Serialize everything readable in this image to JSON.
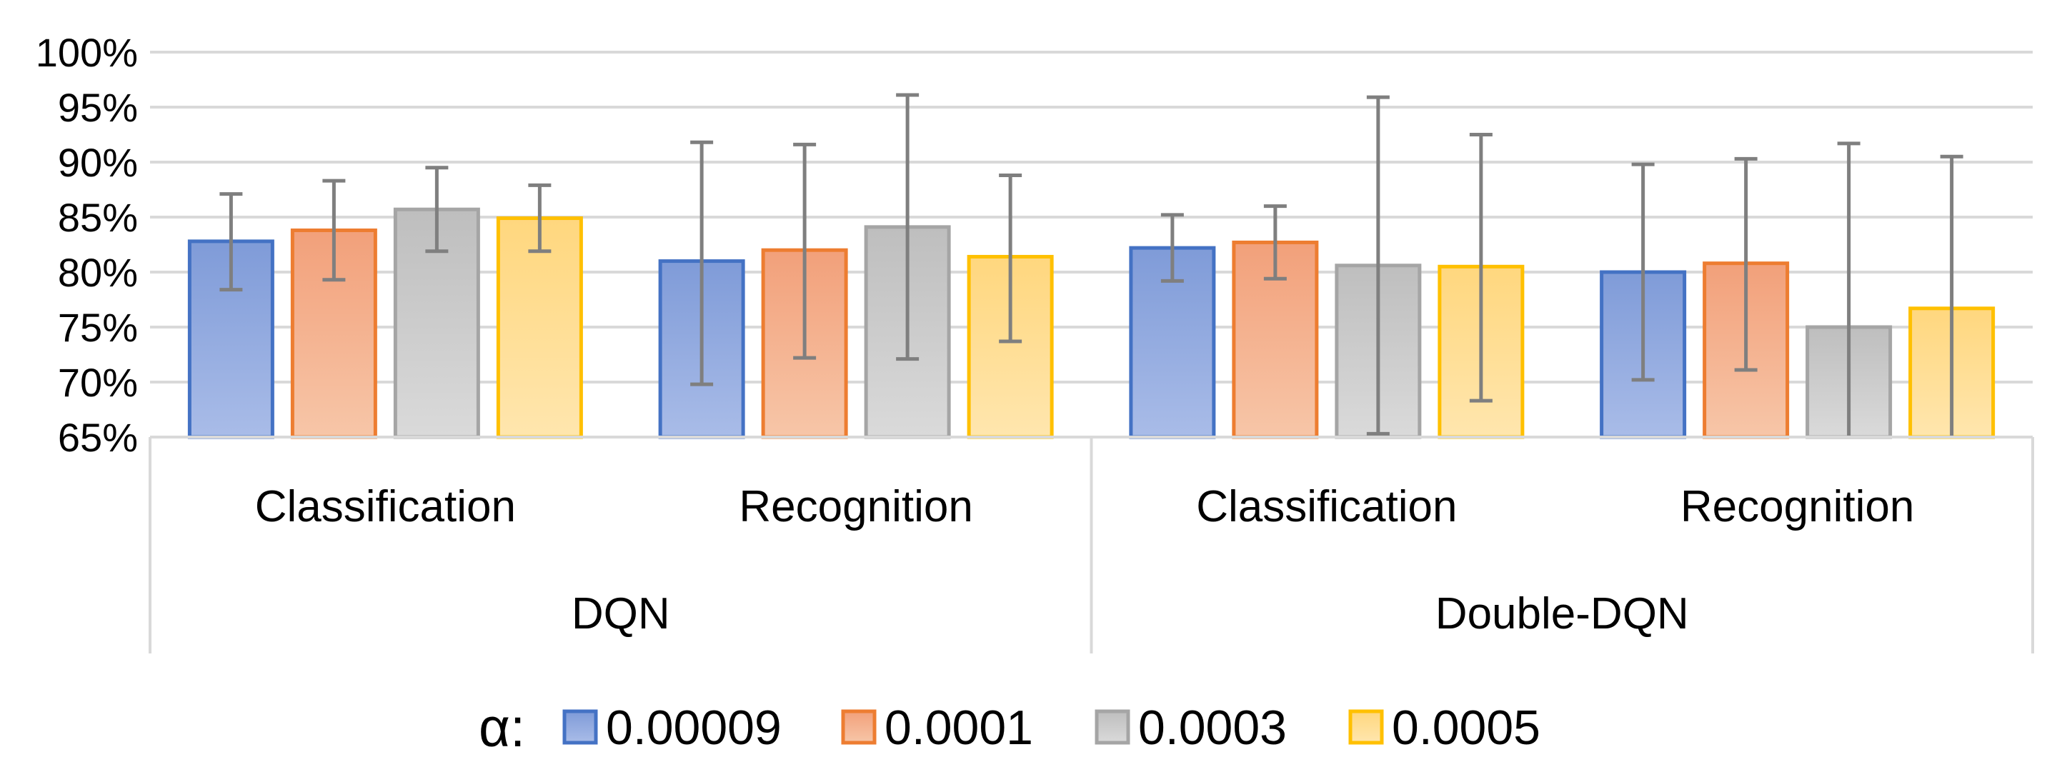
{
  "chart_data": {
    "type": "bar",
    "title": "",
    "xlabel": "",
    "ylabel": "",
    "ylim": [
      0.65,
      1.0
    ],
    "yticks": [
      "65%",
      "70%",
      "75%",
      "80%",
      "85%",
      "90%",
      "95%",
      "100%"
    ],
    "groups": [
      {
        "label": "DQN",
        "categories": [
          "Classification",
          "Recognition"
        ]
      },
      {
        "label": "Double-DQN",
        "categories": [
          "Classification",
          "Recognition"
        ]
      }
    ],
    "categories": [
      "Classification",
      "Recognition",
      "Classification",
      "Recognition"
    ],
    "legend_title": "α:",
    "series": [
      {
        "name": "0.00009",
        "color": "#4472C4",
        "fill_top": "#7F9BD8",
        "fill_bottom": "#A9BCE8",
        "values": [
          0.828,
          0.81,
          0.822,
          0.8
        ],
        "err_low": [
          0.784,
          0.698,
          0.792,
          0.702
        ],
        "err_high": [
          0.871,
          0.918,
          0.852,
          0.898
        ]
      },
      {
        "name": "0.0001",
        "color": "#ED7D31",
        "fill_top": "#F2A07A",
        "fill_bottom": "#F7C6A8",
        "values": [
          0.838,
          0.82,
          0.827,
          0.808
        ],
        "err_low": [
          0.793,
          0.722,
          0.794,
          0.711
        ],
        "err_high": [
          0.883,
          0.916,
          0.86,
          0.903
        ]
      },
      {
        "name": "0.0003",
        "color": "#A5A5A5",
        "fill_top": "#BEBEBE",
        "fill_bottom": "#DADADA",
        "values": [
          0.857,
          0.841,
          0.806,
          0.75
        ],
        "err_low": [
          0.819,
          0.721,
          0.653,
          0.65
        ],
        "err_high": [
          0.895,
          0.961,
          0.959,
          0.917
        ]
      },
      {
        "name": "0.0005",
        "color": "#FFC000",
        "fill_top": "#FFD77E",
        "fill_bottom": "#FFE6AE",
        "values": [
          0.849,
          0.814,
          0.805,
          0.767
        ],
        "err_low": [
          0.819,
          0.737,
          0.683,
          0.65
        ],
        "err_high": [
          0.879,
          0.888,
          0.925,
          0.905
        ]
      }
    ],
    "grid": true,
    "legend_position": "bottom"
  }
}
